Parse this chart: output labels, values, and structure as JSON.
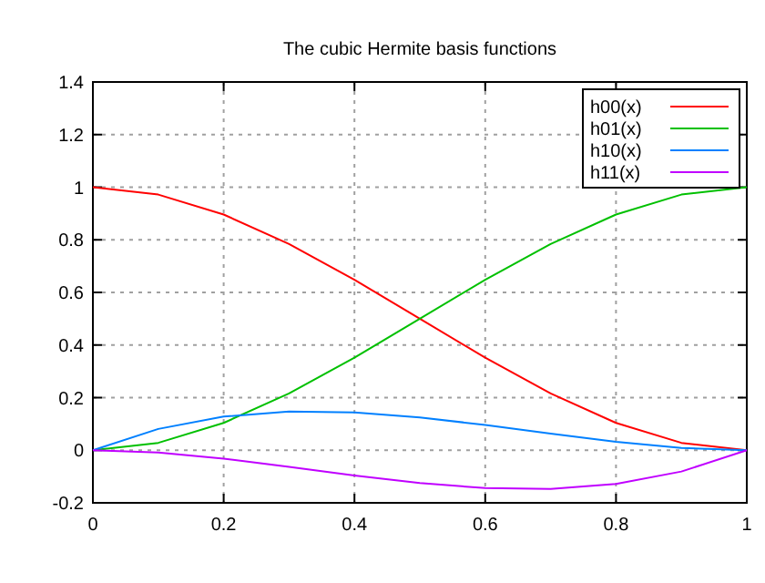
{
  "chart_data": {
    "type": "line",
    "title": "The cubic Hermite basis functions",
    "x": [
      0,
      0.1,
      0.2,
      0.3,
      0.4,
      0.5,
      0.6,
      0.7,
      0.8,
      0.9,
      1
    ],
    "series": [
      {
        "name": "h00(x)",
        "color": "#ff0000",
        "values": [
          1,
          0.972,
          0.896,
          0.784,
          0.648,
          0.5,
          0.352,
          0.216,
          0.104,
          0.028,
          0
        ]
      },
      {
        "name": "h01(x)",
        "color": "#00c000",
        "values": [
          0,
          0.028,
          0.104,
          0.216,
          0.352,
          0.5,
          0.648,
          0.784,
          0.896,
          0.972,
          1
        ]
      },
      {
        "name": "h10(x)",
        "color": "#0080ff",
        "values": [
          0,
          0.081,
          0.128,
          0.147,
          0.144,
          0.125,
          0.096,
          0.063,
          0.032,
          0.009,
          0
        ]
      },
      {
        "name": "h11(x)",
        "color": "#c000ff",
        "values": [
          0,
          -0.009,
          -0.032,
          -0.063,
          -0.096,
          -0.125,
          -0.144,
          -0.147,
          -0.128,
          -0.081,
          0
        ]
      }
    ],
    "xlim": [
      0,
      1
    ],
    "xticks": [
      0,
      0.2,
      0.4,
      0.6,
      0.8,
      1
    ],
    "ylim": [
      -0.2,
      1.4
    ],
    "yticks": [
      -0.2,
      0,
      0.2,
      0.4,
      0.6,
      0.8,
      1,
      1.2,
      1.4
    ],
    "grid": true,
    "legend": "top right"
  }
}
